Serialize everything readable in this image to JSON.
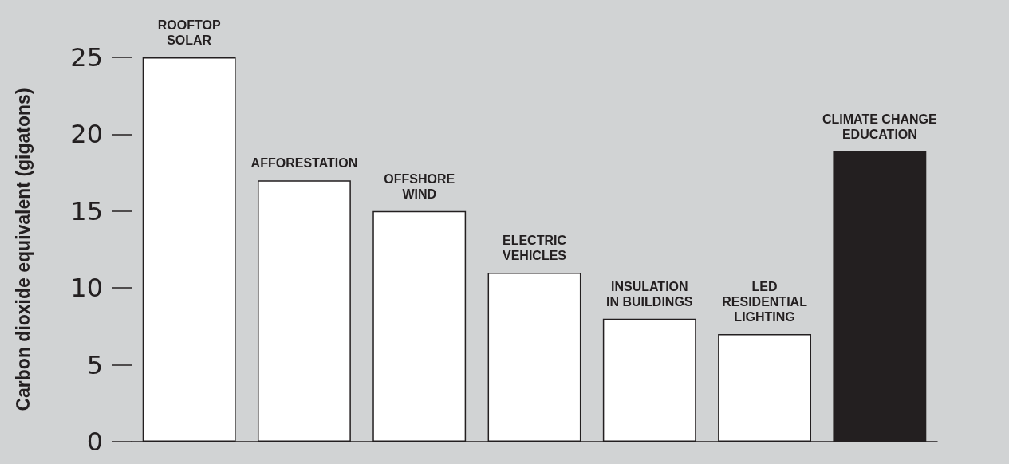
{
  "chart_data": {
    "type": "bar",
    "ylabel": "Carbon dioxide equivalent (gigatons)",
    "categories": [
      "ROOFTOP\nSOLAR",
      "AFFORESTATION",
      "OFFSHORE\nWIND",
      "ELECTRIC\nVEHICLES",
      "INSULATION\nIN BUILDINGS",
      "LED\nRESIDENTIAL\nLIGHTING",
      "CLIMATE CHANGE\nEDUCATION"
    ],
    "values": [
      25,
      17,
      15,
      11,
      8,
      7,
      18.9
    ],
    "colors": [
      "#ffffff",
      "#ffffff",
      "#ffffff",
      "#ffffff",
      "#ffffff",
      "#ffffff",
      "#231f20"
    ],
    "ylim": [
      0,
      25
    ],
    "yticks": [
      0,
      5,
      10,
      15,
      20,
      25
    ],
    "grid": false
  }
}
